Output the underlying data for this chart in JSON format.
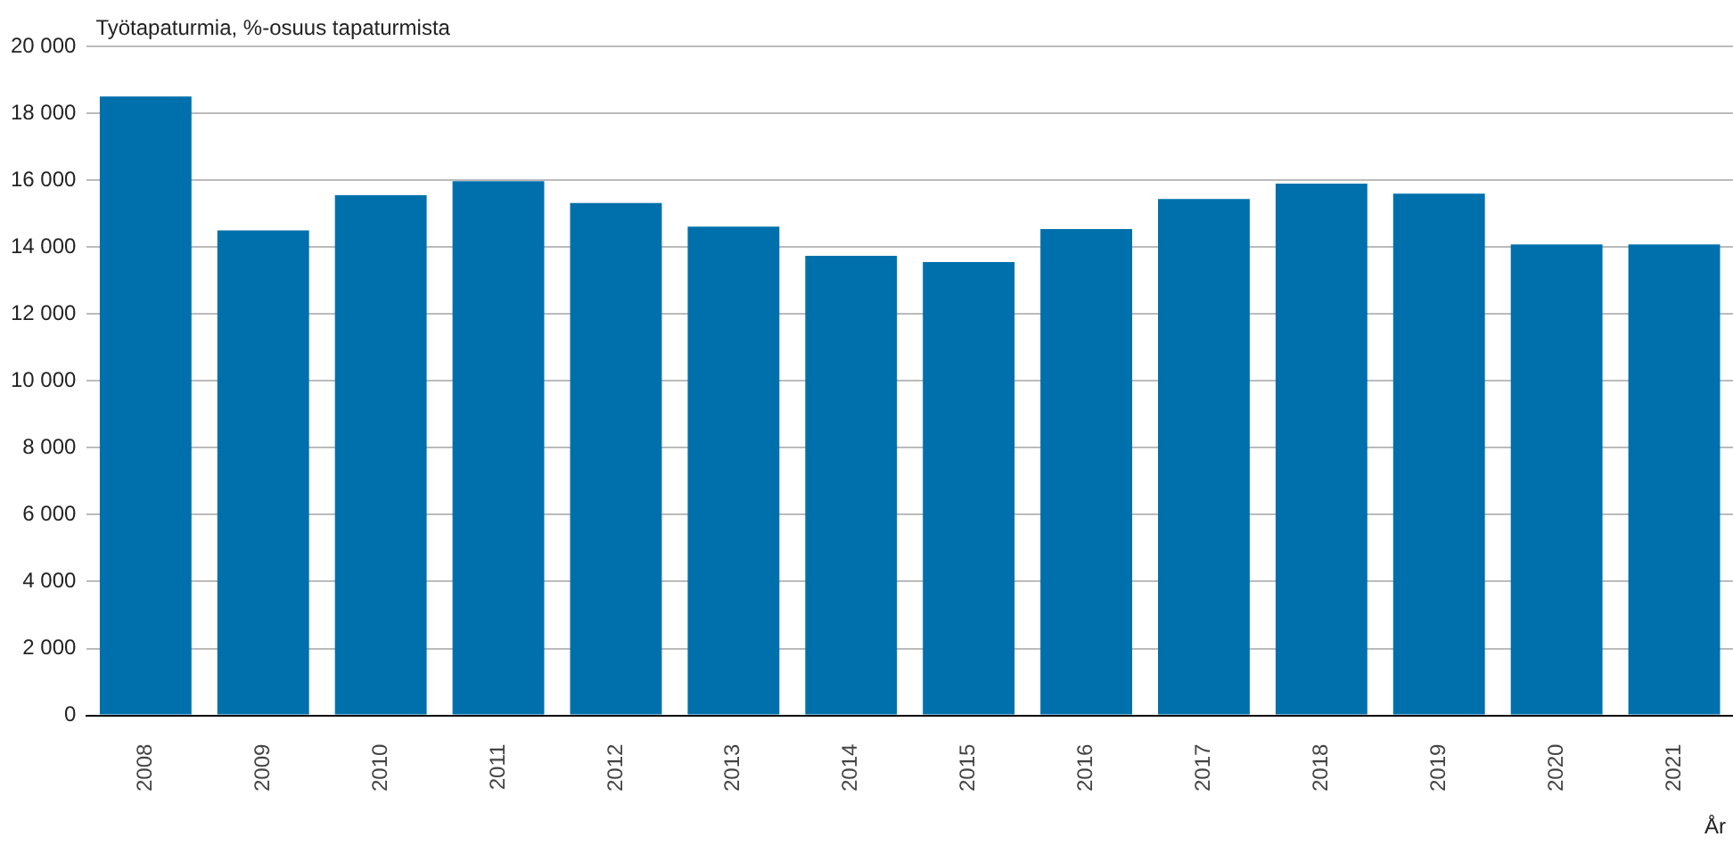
{
  "chart_data": {
    "type": "bar",
    "ylabel": "Työtapaturmia, %-osuus tapaturmista",
    "xlabel": "År",
    "categories": [
      "2008",
      "2009",
      "2010",
      "2011",
      "2012",
      "2013",
      "2014",
      "2015",
      "2016",
      "2017",
      "2018",
      "2019",
      "2020",
      "2021"
    ],
    "values": [
      18500,
      14500,
      15550,
      15970,
      15320,
      14610,
      13740,
      13550,
      14540,
      15440,
      15900,
      15600,
      14080,
      14080
    ],
    "color": "#0070ac",
    "ylim": [
      0,
      20000
    ],
    "yticks": [
      {
        "value": 0,
        "label": "0"
      },
      {
        "value": 2000,
        "label": "2 000"
      },
      {
        "value": 4000,
        "label": "4 000"
      },
      {
        "value": 6000,
        "label": "6 000"
      },
      {
        "value": 8000,
        "label": "8 000"
      },
      {
        "value": 10000,
        "label": "10 000"
      },
      {
        "value": 12000,
        "label": "12 000"
      },
      {
        "value": 14000,
        "label": "14 000"
      },
      {
        "value": 16000,
        "label": "16 000"
      },
      {
        "value": 18000,
        "label": "18 000"
      },
      {
        "value": 20000,
        "label": "20 000"
      }
    ],
    "grid": "y",
    "legend": false
  }
}
